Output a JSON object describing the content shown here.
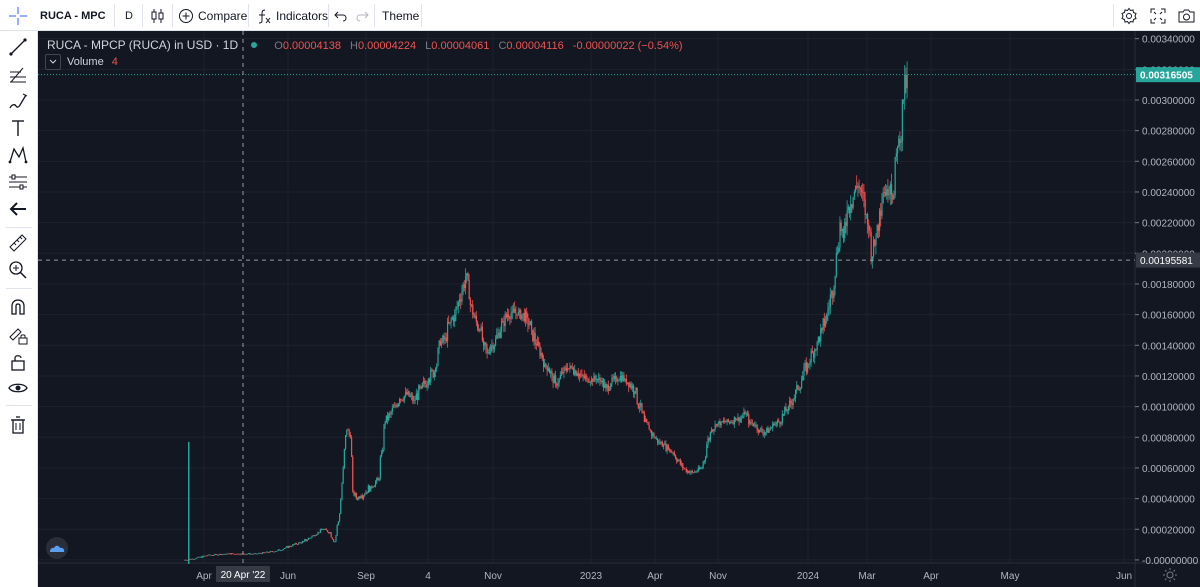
{
  "toolbar": {
    "symbol_label": "RUCA - MPC",
    "interval": "D",
    "compare_label": "Compare",
    "indicators_label": "Indicators",
    "theme_label": "Theme"
  },
  "legend": {
    "title": "RUCA - MPCP (RUCA) in USD · 1D",
    "open_label": "O",
    "open": "0.00004138",
    "high_label": "H",
    "high": "0.00004224",
    "low_label": "L",
    "low": "0.00004061",
    "close_label": "C",
    "close": "0.00004116",
    "change": "-0.00000022 (−0.54%)",
    "volume_label": "Volume",
    "volume_value": "4"
  },
  "icons": {
    "sidebar": [
      "crosshair-icon",
      "trend-line-icon",
      "fib-icon",
      "brush-icon",
      "text-icon",
      "pattern-icon",
      "measure-group-icon",
      "back-arrow-icon",
      "ruler-icon",
      "zoom-in-icon",
      "magnet-icon",
      "lock-drawing-icon",
      "unlock-icon",
      "eye-icon",
      "trash-icon"
    ],
    "toolbar": [
      "candles-icon",
      "compare-plus-icon",
      "fx-icon",
      "undo-icon",
      "redo-icon",
      "settings-icon",
      "fullscreen-icon",
      "camera-icon"
    ]
  },
  "colors": {
    "background": "#131722",
    "up": "#26a69a",
    "down": "#ef5350",
    "last_price_label": "#26a69a",
    "crosshair_label": "#363a45"
  },
  "chart_data": {
    "type": "candlestick",
    "title": "RUCA - MPCP (RUCA) in USD · 1D",
    "y_ticks": [
      "0.00340000",
      "0.00320000",
      "0.00300000",
      "0.00280000",
      "0.00260000",
      "0.00240000",
      "0.00220000",
      "0.00200000",
      "0.00180000",
      "0.00160000",
      "0.00140000",
      "0.00120000",
      "0.00100000",
      "0.00080000",
      "0.00060000",
      "0.00040000",
      "0.00020000",
      "-0.00000000"
    ],
    "x_ticks": [
      "Apr",
      "Jun",
      "Sep",
      "4",
      "Nov",
      "2023",
      "Apr",
      "Nov",
      "2024",
      "Mar",
      "Apr",
      "May",
      "Jun"
    ],
    "ylim": [
      -2e-05,
      0.00345
    ],
    "last_price_label": "0.00316505",
    "last_price": 0.00316505,
    "crosshair_price_label": "0.00195581",
    "crosshair_price": 0.00195581,
    "crosshair_date_label": "20 Apr '22",
    "price_path": [
      [
        0,
        0.0
      ],
      [
        10,
        1e-05
      ],
      [
        20,
        3e-05
      ],
      [
        35,
        4e-05
      ],
      [
        50,
        4e-05
      ],
      [
        60,
        4e-05
      ],
      [
        70,
        5e-05
      ],
      [
        78,
        6e-05
      ],
      [
        85,
        8e-05
      ],
      [
        92,
        0.0001
      ],
      [
        100,
        0.00012
      ],
      [
        108,
        0.00016
      ],
      [
        112,
        0.00018
      ],
      [
        116,
        0.0002
      ],
      [
        122,
        0.00018
      ],
      [
        126,
        0.00012
      ],
      [
        130,
        0.0003
      ],
      [
        133,
        0.0006
      ],
      [
        136,
        0.00085
      ],
      [
        139,
        0.0008
      ],
      [
        141,
        0.00045
      ],
      [
        144,
        0.0004
      ],
      [
        148,
        0.00042
      ],
      [
        156,
        0.00048
      ],
      [
        162,
        0.00052
      ],
      [
        165,
        0.0007
      ],
      [
        168,
        0.0009
      ],
      [
        172,
        0.00095
      ],
      [
        176,
        0.001
      ],
      [
        180,
        0.00105
      ],
      [
        186,
        0.00108
      ],
      [
        192,
        0.00104
      ],
      [
        198,
        0.00112
      ],
      [
        204,
        0.00118
      ],
      [
        210,
        0.00125
      ],
      [
        214,
        0.0014
      ],
      [
        218,
        0.00145
      ],
      [
        222,
        0.00155
      ],
      [
        226,
        0.0016
      ],
      [
        230,
        0.0017
      ],
      [
        232,
        0.00175
      ],
      [
        235,
        0.00185
      ],
      [
        238,
        0.0017
      ],
      [
        241,
        0.0016
      ],
      [
        244,
        0.00155
      ],
      [
        247,
        0.0015
      ],
      [
        250,
        0.0014
      ],
      [
        253,
        0.00135
      ],
      [
        256,
        0.0014
      ],
      [
        259,
        0.0014
      ],
      [
        262,
        0.00148
      ],
      [
        266,
        0.00155
      ],
      [
        270,
        0.0016
      ],
      [
        274,
        0.00162
      ],
      [
        278,
        0.0016
      ],
      [
        282,
        0.0016
      ],
      [
        286,
        0.00158
      ],
      [
        290,
        0.0015
      ],
      [
        294,
        0.0014
      ],
      [
        298,
        0.00135
      ],
      [
        301,
        0.00128
      ],
      [
        304,
        0.00125
      ],
      [
        307,
        0.0012
      ],
      [
        310,
        0.00115
      ],
      [
        313,
        0.00118
      ],
      [
        316,
        0.00122
      ],
      [
        320,
        0.00125
      ],
      [
        324,
        0.00125
      ],
      [
        328,
        0.00122
      ],
      [
        332,
        0.0012
      ],
      [
        336,
        0.00118
      ],
      [
        340,
        0.00118
      ],
      [
        344,
        0.00118
      ],
      [
        348,
        0.00116
      ],
      [
        352,
        0.00112
      ],
      [
        356,
        0.00115
      ],
      [
        360,
        0.00118
      ],
      [
        364,
        0.0012
      ],
      [
        368,
        0.00118
      ],
      [
        372,
        0.00115
      ],
      [
        376,
        0.0011
      ],
      [
        380,
        0.001
      ],
      [
        384,
        0.0009
      ],
      [
        388,
        0.00085
      ],
      [
        392,
        0.0008
      ],
      [
        396,
        0.00077
      ],
      [
        400,
        0.00075
      ],
      [
        404,
        0.00072
      ],
      [
        408,
        0.0007
      ],
      [
        412,
        0.00065
      ],
      [
        416,
        0.0006
      ],
      [
        420,
        0.00058
      ],
      [
        424,
        0.00057
      ],
      [
        428,
        0.00058
      ],
      [
        432,
        0.0006
      ],
      [
        436,
        0.00075
      ],
      [
        440,
        0.00085
      ],
      [
        444,
        0.00088
      ],
      [
        448,
        0.0009
      ],
      [
        452,
        0.0009
      ],
      [
        456,
        0.0009
      ],
      [
        460,
        0.00092
      ],
      [
        464,
        0.00092
      ],
      [
        468,
        0.00095
      ],
      [
        472,
        0.0009
      ],
      [
        476,
        0.00088
      ],
      [
        480,
        0.00085
      ],
      [
        484,
        0.00083
      ],
      [
        488,
        0.00085
      ],
      [
        492,
        0.00088
      ],
      [
        496,
        0.0009
      ],
      [
        500,
        0.00095
      ],
      [
        504,
        0.001
      ],
      [
        508,
        0.00105
      ],
      [
        512,
        0.00112
      ],
      [
        516,
        0.0012
      ],
      [
        520,
        0.00128
      ],
      [
        524,
        0.00135
      ],
      [
        528,
        0.00142
      ],
      [
        532,
        0.0015
      ],
      [
        536,
        0.0016
      ],
      [
        540,
        0.00175
      ],
      [
        544,
        0.002
      ],
      [
        547,
        0.0022
      ],
      [
        550,
        0.0021
      ],
      [
        553,
        0.00228
      ],
      [
        556,
        0.00232
      ],
      [
        559,
        0.0024
      ],
      [
        562,
        0.00244
      ],
      [
        565,
        0.0024
      ],
      [
        568,
        0.00225
      ],
      [
        571,
        0.00215
      ],
      [
        574,
        0.00198
      ],
      [
        577,
        0.0021
      ],
      [
        580,
        0.00228
      ],
      [
        583,
        0.0024
      ],
      [
        586,
        0.00242
      ],
      [
        589,
        0.00245
      ],
      [
        592,
        0.00238
      ],
      [
        595,
        0.0027
      ],
      [
        597,
        0.00272
      ],
      [
        600,
        0.003
      ],
      [
        603,
        0.00316505
      ]
    ],
    "volume_spike": 0.00077
  }
}
